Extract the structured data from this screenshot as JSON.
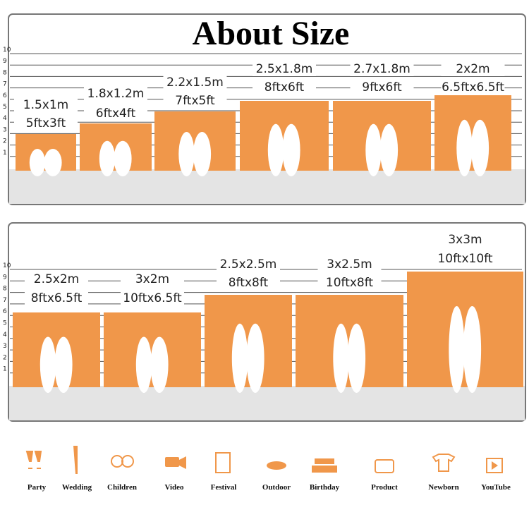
{
  "title": "About Size",
  "scale_top": [
    10,
    9,
    8,
    7,
    6,
    5,
    4,
    3,
    2,
    1
  ],
  "sizes_top": [
    {
      "metric": "1.5x1m",
      "imperial": "5ftx3ft"
    },
    {
      "metric": "1.8x1.2m",
      "imperial": "6ftx4ft"
    },
    {
      "metric": "2.2x1.5m",
      "imperial": "7ftx5ft"
    },
    {
      "metric": "2.5x1.8m",
      "imperial": "8ftx6ft"
    },
    {
      "metric": "2.7x1.8m",
      "imperial": "9ftx6ft"
    },
    {
      "metric": "2x2m",
      "imperial": "6.5ftx6.5ft"
    }
  ],
  "scale_bottom": [
    10,
    9,
    8,
    7,
    6,
    5,
    4,
    3,
    2,
    1
  ],
  "sizes_bottom": [
    {
      "metric": "2.5x2m",
      "imperial": "8ftx6.5ft"
    },
    {
      "metric": "3x2m",
      "imperial": "10ftx6.5ft"
    },
    {
      "metric": "2.5x2.5m",
      "imperial": "8ftx8ft"
    },
    {
      "metric": "3x2.5m",
      "imperial": "10ftx8ft"
    },
    {
      "metric": "3x3m",
      "imperial": "10ftx10ft"
    }
  ],
  "uses": [
    "Party",
    "Wedding",
    "Children",
    "Video",
    "Festival",
    "Outdoor",
    "Birthday",
    "Product",
    "Newborn",
    "YouTube"
  ]
}
